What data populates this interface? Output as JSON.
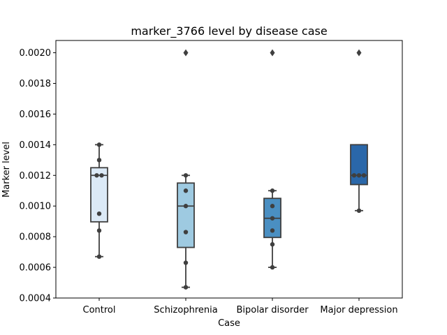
{
  "chart_data": {
    "type": "box",
    "title": "marker_3766 level by disease case",
    "xlabel": "Case",
    "ylabel": "Marker level",
    "ylim": [
      0.0004,
      0.00208
    ],
    "yticks": [
      "0.0004",
      "0.0006",
      "0.0008",
      "0.0010",
      "0.0012",
      "0.0014",
      "0.0016",
      "0.0018",
      "0.0020"
    ],
    "categories": [
      "Control",
      "Schizophrenia",
      "Bipolar disorder",
      "Major depression"
    ],
    "colors": [
      "#dbe9f6",
      "#9ecae1",
      "#4a8fc2",
      "#2a67a9"
    ],
    "grid": false,
    "boxes": [
      {
        "q1": 0.000897,
        "median": 0.0012,
        "q3": 0.00125,
        "whisker_low": 0.00067,
        "whisker_high": 0.0014
      },
      {
        "q1": 0.00073,
        "median": 0.001,
        "q3": 0.00115,
        "whisker_low": 0.00047,
        "whisker_high": 0.0012
      },
      {
        "q1": 0.000795,
        "median": 0.00092,
        "q3": 0.00105,
        "whisker_low": 0.0006,
        "whisker_high": 0.0011
      },
      {
        "q1": 0.00114,
        "median": 0.0012,
        "q3": 0.0014,
        "whisker_low": 0.00097,
        "whisker_high": 0.0014
      }
    ],
    "outliers": [
      [],
      [
        0.002
      ],
      [
        0.002
      ],
      [
        0.002
      ]
    ],
    "points": [
      [
        0.0014,
        0.0013,
        0.0012,
        0.0012,
        0.00095,
        0.00084,
        0.00067
      ],
      [
        0.0012,
        0.0011,
        0.001,
        0.00083,
        0.00063,
        0.00047
      ],
      [
        0.0011,
        0.001,
        0.00092,
        0.00084,
        0.00075,
        0.0006
      ],
      [
        0.0012,
        0.0012,
        0.0012,
        0.00097
      ]
    ]
  }
}
